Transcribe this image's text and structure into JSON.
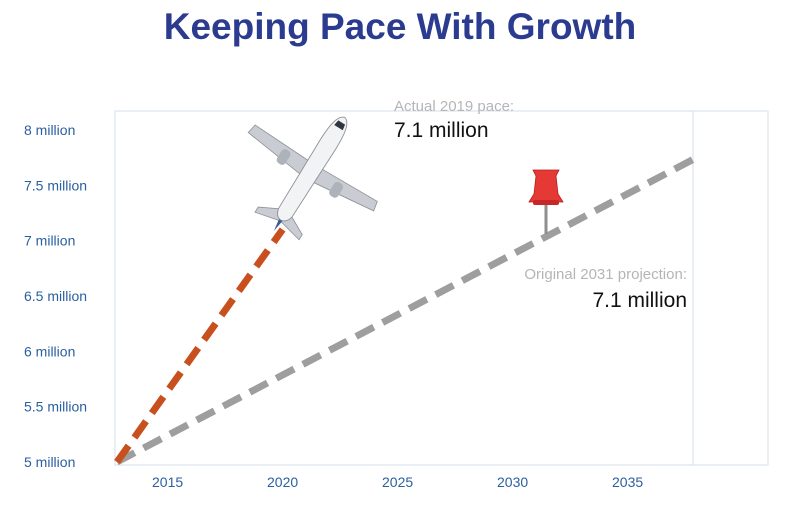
{
  "title": "Keeping Pace With Growth",
  "chart_data": {
    "type": "line",
    "title": "Keeping Pace With Growth",
    "xlabel": "",
    "ylabel": "",
    "xlim": [
      2012.8,
      2038
    ],
    "ylim": [
      5,
      8.1
    ],
    "y_ticks": [
      {
        "value": 8,
        "label": "8 million"
      },
      {
        "value": 7.5,
        "label": "7.5 million"
      },
      {
        "value": 7,
        "label": "7 million"
      },
      {
        "value": 6.5,
        "label": "6.5 million"
      },
      {
        "value": 6,
        "label": "6 million"
      },
      {
        "value": 5.5,
        "label": "5.5 million"
      },
      {
        "value": 5,
        "label": "5 million"
      }
    ],
    "x_ticks": [
      {
        "value": 2015,
        "label": "2015"
      },
      {
        "value": 2020,
        "label": "2020"
      },
      {
        "value": 2025,
        "label": "2025"
      },
      {
        "value": 2030,
        "label": "2030"
      },
      {
        "value": 2035,
        "label": "2035"
      }
    ],
    "series": [
      {
        "values": [
          {
            "x": 2012.8,
            "y": 5.0
          },
          {
            "x": 2020,
            "y": 7.1
          }
        ],
        "color": "#c8501e",
        "style": "dashed"
      },
      {
        "values": [
          {
            "x": 2012.8,
            "y": 5.0
          },
          {
            "x": 2038,
            "y": 7.75
          }
        ],
        "color": "#9e9e9e",
        "style": "dashed"
      }
    ],
    "annotations": [
      {
        "text": "Actual 2019 pace:",
        "value_text": "7.1 million",
        "icon": "airplane-icon"
      },
      {
        "text": "Original 2031 projection:",
        "value_text": "7.1 million",
        "icon": "pushpin-icon",
        "marker": {
          "x": 2031.5,
          "y": 7.1
        }
      }
    ],
    "grid": false,
    "colors": {
      "actual": "#c8501e",
      "projection": "#9e9e9e",
      "pin": "#e53935",
      "axis_text": "#2b5fa0",
      "title": "#2b3b8f"
    }
  }
}
